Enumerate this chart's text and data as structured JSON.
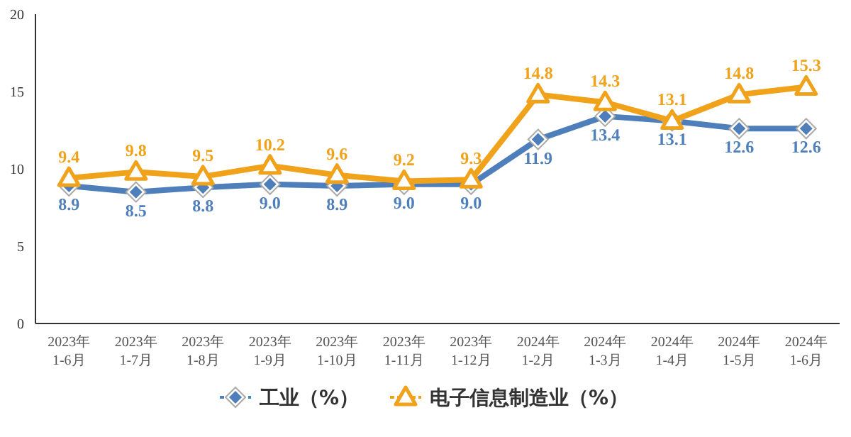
{
  "chart_data": {
    "type": "line",
    "categories": [
      "2023年\n1-6月",
      "2023年\n1-7月",
      "2023年\n1-8月",
      "2023年\n1-9月",
      "2023年\n1-10月",
      "2023年\n1-11月",
      "2023年\n1-12月",
      "2024年\n1-2月",
      "2024年\n1-3月",
      "2024年\n1-4月",
      "2024年\n1-5月",
      "2024年\n1-6月"
    ],
    "series": [
      {
        "name": "工业（%）",
        "color": "#4f7fba",
        "marker": "diamond",
        "values": [
          8.9,
          8.5,
          8.8,
          9.0,
          8.9,
          9.0,
          9.0,
          11.9,
          13.4,
          13.1,
          12.6,
          12.6
        ],
        "value_labels": [
          "8.9",
          "8.5",
          "8.8",
          "9.0",
          "8.9",
          "9.0",
          "9.0",
          "11.9",
          "13.4",
          "13.1",
          "12.6",
          "12.6"
        ]
      },
      {
        "name": "电子信息制造业（%）",
        "color": "#f0a21a",
        "marker": "triangle",
        "values": [
          9.4,
          9.8,
          9.5,
          10.2,
          9.6,
          9.2,
          9.3,
          14.8,
          14.3,
          13.1,
          14.8,
          15.3
        ],
        "value_labels": [
          "9.4",
          "9.8",
          "9.5",
          "10.2",
          "9.6",
          "9.2",
          "9.3",
          "14.8",
          "14.3",
          "13.1",
          "14.8",
          "15.3"
        ]
      }
    ],
    "ylim": [
      0,
      20
    ],
    "yticks": [
      0,
      5,
      10,
      15,
      20
    ],
    "legend": "bottom",
    "grid": false
  }
}
